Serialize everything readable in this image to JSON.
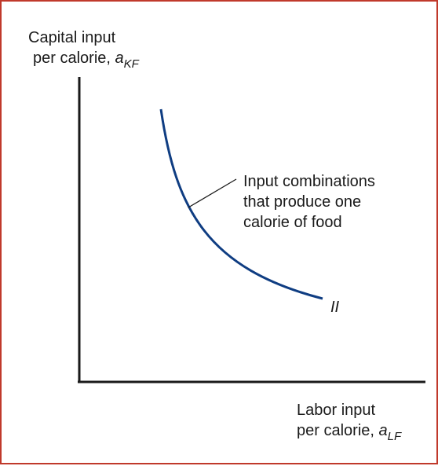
{
  "y_axis_label": {
    "line1": "Capital input",
    "line2_prefix": "per calorie, ",
    "symbol": "a",
    "subscript": "KF"
  },
  "x_axis_label": {
    "line1": "Labor input",
    "line2_prefix": "per calorie, ",
    "symbol": "a",
    "subscript": "LF"
  },
  "curve_label": "II",
  "annotation": {
    "line1": "Input combinations",
    "line2": "that produce one",
    "line3": "calorie of food"
  },
  "colors": {
    "border": "#c0392b",
    "axes": "#1a1a1a",
    "curve": "#0f3d82",
    "text": "#1a1a1a"
  }
}
